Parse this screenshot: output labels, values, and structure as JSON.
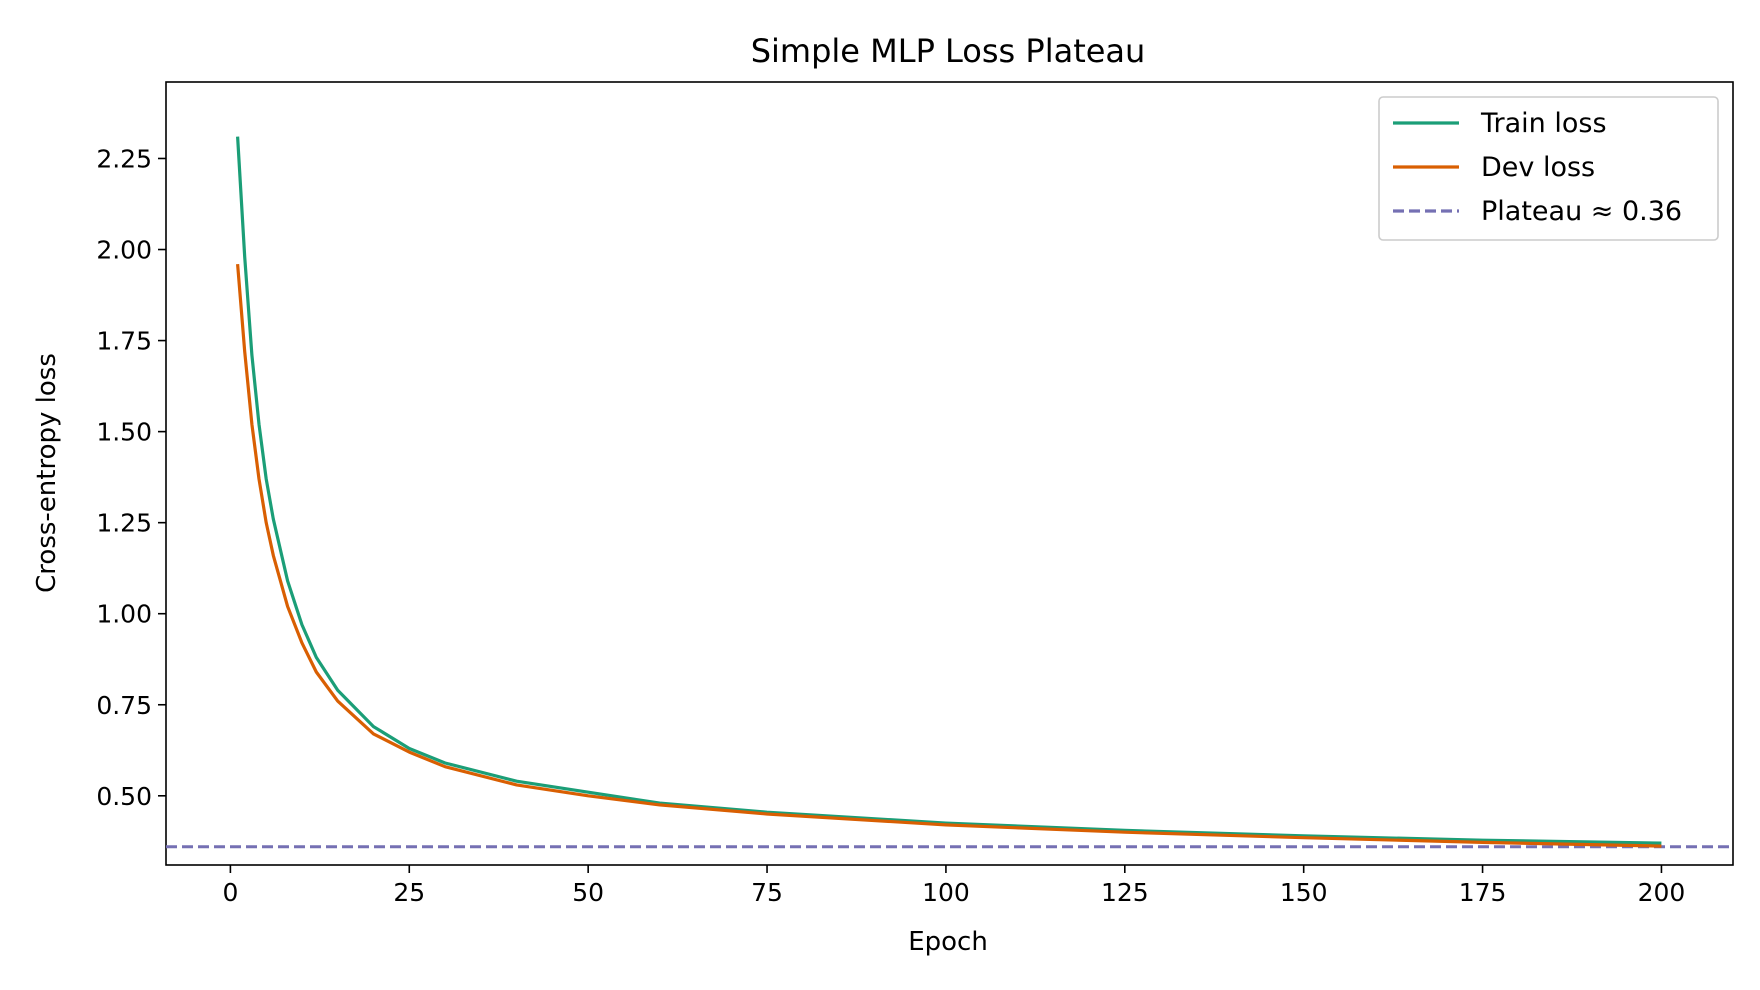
{
  "chart_data": {
    "type": "line",
    "title": "Simple MLP Loss Plateau",
    "xlabel": "Epoch",
    "ylabel": "Cross-entropy loss",
    "xlim": [
      -9,
      210
    ],
    "ylim": [
      0.31,
      2.46
    ],
    "xticks": [
      0,
      25,
      50,
      75,
      100,
      125,
      150,
      175,
      200
    ],
    "yticks": [
      0.5,
      0.75,
      1.0,
      1.25,
      1.5,
      1.75,
      2.0,
      2.25
    ],
    "xtick_labels": [
      "0",
      "25",
      "50",
      "75",
      "100",
      "125",
      "150",
      "175",
      "200"
    ],
    "ytick_labels": [
      "0.50",
      "0.75",
      "1.00",
      "1.25",
      "1.50",
      "1.75",
      "2.00",
      "2.25"
    ],
    "grid": false,
    "legend_position": "top-right",
    "x": [
      1,
      2,
      3,
      4,
      5,
      6,
      8,
      10,
      12,
      15,
      20,
      25,
      30,
      40,
      50,
      60,
      75,
      100,
      125,
      150,
      175,
      200
    ],
    "series": [
      {
        "name": "Train loss",
        "color": "#1b9e77",
        "values": [
          2.31,
          1.98,
          1.71,
          1.52,
          1.37,
          1.26,
          1.09,
          0.97,
          0.88,
          0.79,
          0.69,
          0.63,
          0.59,
          0.54,
          0.51,
          0.48,
          0.455,
          0.425,
          0.405,
          0.39,
          0.378,
          0.37
        ]
      },
      {
        "name": "Dev loss",
        "color": "#d95f02",
        "values": [
          1.96,
          1.72,
          1.52,
          1.37,
          1.25,
          1.16,
          1.02,
          0.92,
          0.84,
          0.76,
          0.67,
          0.62,
          0.58,
          0.53,
          0.5,
          0.475,
          0.45,
          0.42,
          0.4,
          0.385,
          0.372,
          0.362
        ]
      }
    ],
    "reference_lines": [
      {
        "name": "Plateau ≈ 0.36",
        "y": 0.36,
        "color": "#7570b3",
        "style": "dashed"
      }
    ]
  }
}
